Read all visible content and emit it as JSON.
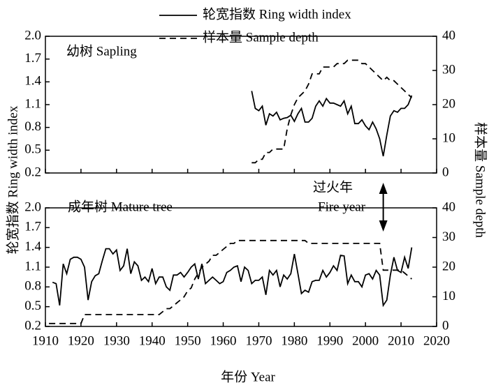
{
  "chart_data": [
    {
      "type": "line",
      "y_label": "轮宽指数 Ring width index",
      "y2_label": "样本量 Sample depth",
      "annotation": "幼树 Sapling",
      "xlim": [
        1910,
        2020
      ],
      "xticks": [
        1910,
        1920,
        1930,
        1940,
        1950,
        1960,
        1970,
        1980,
        1990,
        2000,
        2010,
        2020
      ],
      "ylim": [
        0.2,
        2.0
      ],
      "yticks": [
        0.2,
        0.5,
        0.8,
        1.1,
        1.4,
        1.7,
        {
          "value": 2,
          "label": "2.0"
        }
      ],
      "y2lim": [
        0,
        40
      ],
      "y2ticks": [
        0,
        10,
        20,
        30,
        40
      ],
      "legend": "top",
      "series": [
        {
          "name": "轮宽指数 Ring width index",
          "color": "#000000",
          "style": "solid",
          "x": [
            1968,
            1969,
            1970,
            1971,
            1972,
            1973,
            1974,
            1975,
            1976,
            1977,
            1978,
            1979,
            1980,
            1981,
            1982,
            1983,
            1984,
            1985,
            1986,
            1987,
            1988,
            1989,
            1990,
            1991,
            1992,
            1993,
            1994,
            1995,
            1996,
            1997,
            1998,
            1999,
            2000,
            2001,
            2002,
            2003,
            2004,
            2005,
            2006,
            2007,
            2008,
            2009,
            2010,
            2011,
            2012,
            2013
          ],
          "values": [
            1.28,
            1.05,
            1.02,
            1.08,
            0.83,
            0.98,
            0.95,
            1.0,
            0.9,
            0.92,
            0.93,
            0.96,
            0.88,
            0.98,
            1.05,
            0.87,
            0.87,
            0.92,
            1.08,
            1.15,
            1.08,
            1.18,
            1.12,
            1.12,
            1.1,
            1.08,
            1.15,
            0.98,
            1.08,
            0.85,
            0.85,
            0.9,
            0.82,
            0.77,
            0.87,
            0.78,
            0.65,
            0.42,
            0.7,
            0.95,
            1.02,
            1.0,
            1.05,
            1.05,
            1.1,
            1.22
          ]
        },
        {
          "name": "样本量 Sample depth",
          "color": "#000000",
          "style": "dashed",
          "axis": "y2",
          "x": [
            1968,
            1969,
            1970,
            1971,
            1972,
            1973,
            1974,
            1975,
            1976,
            1977,
            1978,
            1979,
            1980,
            1981,
            1982,
            1983,
            1984,
            1985,
            1986,
            1987,
            1988,
            1989,
            1990,
            1991,
            1992,
            1993,
            1994,
            1995,
            1996,
            1997,
            1998,
            1999,
            2000,
            2001,
            2002,
            2003,
            2004,
            2005,
            2006,
            2007,
            2008,
            2009,
            2010,
            2011,
            2012,
            2013
          ],
          "values": [
            3,
            3,
            4,
            4,
            6,
            6,
            7,
            7,
            7,
            7,
            13,
            17,
            20,
            22,
            23,
            24,
            26,
            29,
            29,
            29,
            31,
            31,
            31,
            31,
            32,
            32,
            32,
            33,
            33,
            33,
            33,
            32,
            32,
            31,
            30,
            29,
            28,
            27,
            28,
            27,
            27,
            26,
            25,
            24,
            23,
            22
          ]
        }
      ]
    },
    {
      "type": "line",
      "x_label": "年份 Year",
      "annotation": "成年树 Mature tree",
      "fire_label": [
        "过火年",
        "Fire year"
      ],
      "fire_year": 2005,
      "xlim": [
        1910,
        2020
      ],
      "xticks": [
        1910,
        1920,
        1930,
        1940,
        1950,
        1960,
        1970,
        1980,
        1990,
        2000,
        2010,
        2020
      ],
      "ylim": [
        0.2,
        2.0
      ],
      "yticks": [
        0.2,
        0.5,
        0.8,
        1.1,
        1.4,
        1.7,
        {
          "value": 2,
          "label": "2.0"
        }
      ],
      "y2lim": [
        0,
        40
      ],
      "y2ticks": [
        0,
        10,
        20,
        30,
        40
      ],
      "series": [
        {
          "color": "#000000",
          "style": "solid",
          "x": [
            1912,
            1913,
            1914,
            1915,
            1916,
            1917,
            1918,
            1919,
            1920,
            1921,
            1922,
            1923,
            1924,
            1925,
            1926,
            1927,
            1928,
            1929,
            1930,
            1931,
            1932,
            1933,
            1934,
            1935,
            1936,
            1937,
            1938,
            1939,
            1940,
            1941,
            1942,
            1943,
            1944,
            1945,
            1946,
            1947,
            1948,
            1949,
            1950,
            1951,
            1952,
            1953,
            1954,
            1955,
            1956,
            1957,
            1958,
            1959,
            1960,
            1961,
            1962,
            1963,
            1964,
            1965,
            1966,
            1967,
            1968,
            1969,
            1970,
            1971,
            1972,
            1973,
            1974,
            1975,
            1976,
            1977,
            1978,
            1979,
            1980,
            1981,
            1982,
            1983,
            1984,
            1985,
            1986,
            1987,
            1988,
            1989,
            1990,
            1991,
            1992,
            1993,
            1994,
            1995,
            1996,
            1997,
            1998,
            1999,
            2000,
            2001,
            2002,
            2003,
            2004,
            2005,
            2006,
            2007,
            2008,
            2009,
            2010,
            2011,
            2012,
            2013
          ],
          "values": [
            0.87,
            0.85,
            0.52,
            1.15,
            1.0,
            1.22,
            1.25,
            1.25,
            1.22,
            1.1,
            0.6,
            0.88,
            0.97,
            1.0,
            1.2,
            1.38,
            1.38,
            1.3,
            1.36,
            1.05,
            1.12,
            1.38,
            1.0,
            1.18,
            1.12,
            0.9,
            0.95,
            0.88,
            1.08,
            0.85,
            0.95,
            0.95,
            0.8,
            0.75,
            0.98,
            0.98,
            1.02,
            0.95,
            1.02,
            1.1,
            1.15,
            0.92,
            1.15,
            0.85,
            0.9,
            0.95,
            0.9,
            0.85,
            0.88,
            1.02,
            1.05,
            1.1,
            1.12,
            0.88,
            1.1,
            1.05,
            0.85,
            0.9,
            0.9,
            0.95,
            0.68,
            1.05,
            0.98,
            1.05,
            0.8,
            0.98,
            0.92,
            1.0,
            1.3,
            1.0,
            0.7,
            0.75,
            0.72,
            0.88,
            0.9,
            0.9,
            1.05,
            0.95,
            1.02,
            1.12,
            1.05,
            1.28,
            1.27,
            0.85,
            0.98,
            0.88,
            0.88,
            0.8,
            0.98,
            1.0,
            0.92,
            1.05,
            0.98,
            0.52,
            0.6,
            0.98,
            1.25,
            1.05,
            1.02,
            1.25,
            1.08,
            1.4
          ]
        },
        {
          "color": "#000000",
          "style": "dashed",
          "axis": "y2",
          "x": [
            1911,
            1920,
            1921,
            1942,
            1943,
            1944,
            1945,
            1946,
            1947,
            1948,
            1949,
            1950,
            1951,
            1952,
            1953,
            1954,
            1955,
            1956,
            1957,
            1958,
            1959,
            1960,
            1961,
            1962,
            1963,
            1964,
            1983,
            1984,
            2004,
            2005,
            2010,
            2011,
            2012,
            2013
          ],
          "values": [
            1,
            1,
            4,
            4,
            5,
            6,
            6,
            7,
            8,
            9,
            10,
            12,
            13,
            16,
            18,
            20,
            21,
            22,
            24,
            24,
            25,
            26,
            27,
            28,
            28,
            29,
            29,
            28,
            28,
            19,
            19,
            18,
            17,
            16
          ]
        }
      ]
    }
  ]
}
